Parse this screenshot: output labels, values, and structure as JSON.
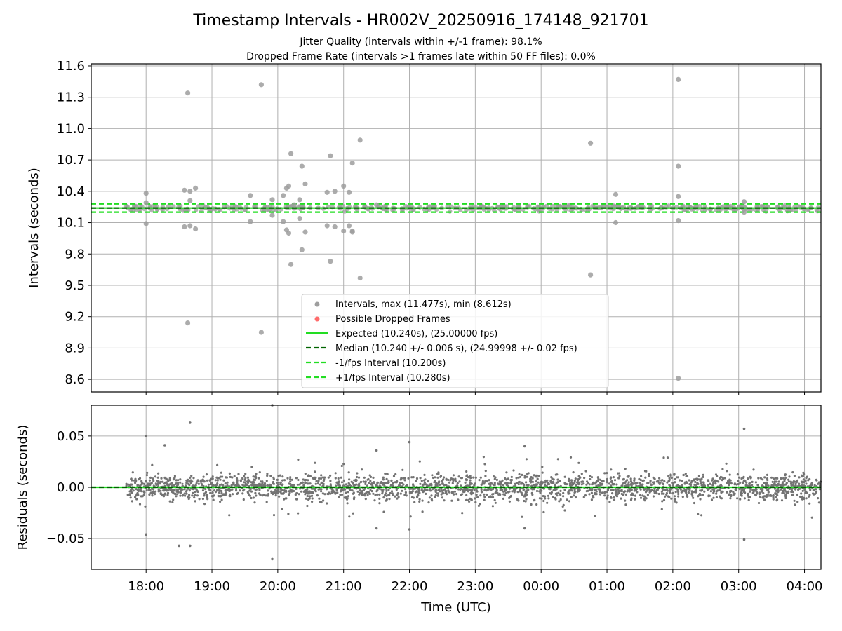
{
  "chart_data": [
    {
      "type": "scatter",
      "title": "Timestamp Intervals - HR002V_20250916_174148_921701",
      "subtitle_lines": [
        "Jitter Quality (intervals within +/-1 frame): 98.1%",
        "Dropped Frame Rate (intervals >1 frames late within 50 FF files): 0.0%"
      ],
      "ylabel": "Intervals (seconds)",
      "ylim": [
        8.48,
        11.62
      ],
      "yticks": [
        "8.6",
        "8.9",
        "9.2",
        "9.5",
        "9.8",
        "10.1",
        "10.4",
        "10.7",
        "11.0",
        "11.3",
        "11.6"
      ],
      "xlim": [
        "2025-09-16 17:10",
        "2025-09-17 04:15"
      ],
      "xticks": [
        "18:00",
        "19:00",
        "20:00",
        "21:00",
        "22:00",
        "23:00",
        "00:00",
        "01:00",
        "02:00",
        "03:00",
        "04:00"
      ],
      "grid": true,
      "legend": {
        "placement": "lower-center",
        "entries": [
          "Intervals, max (11.477s), min (8.612s)",
          "Possible Dropped Frames",
          "Expected (10.240s), (25.00000 fps)",
          "Median (10.240 +/- 0.006 s), (24.99998 +/- 0.02 fps)",
          "-1/fps Interval (10.200s)",
          "+1/fps Interval (10.280s)"
        ]
      },
      "series": [
        {
          "name": "Intervals, max (11.477s), min (8.612s)",
          "color": "#9e9e9e",
          "points": [
            [
              "2025-09-16 18:00",
              10.38
            ],
            [
              "2025-09-16 18:00",
              10.09
            ],
            [
              "2025-09-16 18:00",
              10.29
            ],
            [
              "2025-09-16 18:35",
              10.41
            ],
            [
              "2025-09-16 18:35",
              10.06
            ],
            [
              "2025-09-16 18:38",
              11.34
            ],
            [
              "2025-09-16 18:38",
              9.14
            ],
            [
              "2025-09-16 18:40",
              10.07
            ],
            [
              "2025-09-16 18:40",
              10.31
            ],
            [
              "2025-09-16 18:40",
              10.4
            ],
            [
              "2025-09-16 18:45",
              10.43
            ],
            [
              "2025-09-16 18:45",
              10.04
            ],
            [
              "2025-09-16 19:35",
              10.36
            ],
            [
              "2025-09-16 19:35",
              10.11
            ],
            [
              "2025-09-16 19:45",
              11.42
            ],
            [
              "2025-09-16 19:45",
              9.05
            ],
            [
              "2025-09-16 19:55",
              10.32
            ],
            [
              "2025-09-16 19:55",
              10.17
            ],
            [
              "2025-09-16 20:05",
              10.36
            ],
            [
              "2025-09-16 20:05",
              10.11
            ],
            [
              "2025-09-16 20:08",
              10.43
            ],
            [
              "2025-09-16 20:08",
              10.03
            ],
            [
              "2025-09-16 20:10",
              10.45
            ],
            [
              "2025-09-16 20:10",
              10.0
            ],
            [
              "2025-09-16 20:12",
              10.76
            ],
            [
              "2025-09-16 20:12",
              9.7
            ],
            [
              "2025-09-16 20:15",
              10.27
            ],
            [
              "2025-09-16 20:20",
              10.32
            ],
            [
              "2025-09-16 20:20",
              10.14
            ],
            [
              "2025-09-16 20:22",
              10.64
            ],
            [
              "2025-09-16 20:22",
              9.84
            ],
            [
              "2025-09-16 20:25",
              10.47
            ],
            [
              "2025-09-16 20:25",
              10.01
            ],
            [
              "2025-09-16 20:45",
              10.39
            ],
            [
              "2025-09-16 20:45",
              10.07
            ],
            [
              "2025-09-16 20:48",
              10.74
            ],
            [
              "2025-09-16 20:48",
              9.73
            ],
            [
              "2025-09-16 20:52",
              10.4
            ],
            [
              "2025-09-16 20:52",
              10.06
            ],
            [
              "2025-09-16 21:00",
              10.45
            ],
            [
              "2025-09-16 21:00",
              10.02
            ],
            [
              "2025-09-16 21:05",
              10.39
            ],
            [
              "2025-09-16 21:05",
              10.07
            ],
            [
              "2025-09-16 21:08",
              10.67
            ],
            [
              "2025-09-16 21:08",
              10.02
            ],
            [
              "2025-09-16 21:08",
              10.01
            ],
            [
              "2025-09-16 21:15",
              10.89
            ],
            [
              "2025-09-16 21:15",
              9.57
            ],
            [
              "2025-09-16 21:30",
              10.27
            ],
            [
              "2025-09-17 00:45",
              10.86
            ],
            [
              "2025-09-17 00:45",
              9.6
            ],
            [
              "2025-09-17 01:08",
              10.37
            ],
            [
              "2025-09-17 01:08",
              10.1
            ],
            [
              "2025-09-17 02:05",
              11.47
            ],
            [
              "2025-09-17 02:05",
              8.61
            ],
            [
              "2025-09-17 02:05",
              10.64
            ],
            [
              "2025-09-17 02:05",
              10.35
            ],
            [
              "2025-09-17 02:05",
              10.12
            ],
            [
              "2025-09-17 03:05",
              10.3
            ],
            [
              "2025-09-17 03:05",
              10.2
            ]
          ]
        },
        {
          "name": "Possible Dropped Frames",
          "color": "#ff6b6b",
          "points": []
        }
      ],
      "reference_lines": [
        {
          "name": "Expected (10.240s), (25.00000 fps)",
          "y": 10.24,
          "color": "#22dd22",
          "style": "solid"
        },
        {
          "name": "Median (10.240 +/- 0.006 s), (24.99998 +/- 0.02 fps)",
          "y": 10.24,
          "color": "#006400",
          "style": "dashed"
        },
        {
          "name": "-1/fps Interval (10.200s)",
          "y": 10.2,
          "color": "#22dd22",
          "style": "dashed"
        },
        {
          "name": "+1/fps Interval (10.280s)",
          "y": 10.28,
          "color": "#22dd22",
          "style": "dashed"
        }
      ],
      "dense_band": {
        "from": "2025-09-16 17:42",
        "to": "2025-09-17 04:15",
        "center": 10.24,
        "spread": 0.02
      }
    },
    {
      "type": "scatter",
      "ylabel": "Residuals (seconds)",
      "xlabel": "Time (UTC)",
      "ylim": [
        -0.08,
        0.08
      ],
      "yticks": [
        "−0.05",
        "0.00",
        "0.05"
      ],
      "ytick_values": [
        -0.05,
        0.0,
        0.05
      ],
      "xlim": [
        "2025-09-16 17:10",
        "2025-09-17 04:15"
      ],
      "xticks": [
        "18:00",
        "19:00",
        "20:00",
        "21:00",
        "22:00",
        "23:00",
        "00:00",
        "01:00",
        "02:00",
        "03:00",
        "04:00"
      ],
      "grid": true,
      "series": [
        {
          "name": "Residuals",
          "color": "#737373",
          "band": {
            "from": "2025-09-16 17:42",
            "to": "2025-09-17 04:15",
            "spread": 0.011
          },
          "outliers": [
            [
              "2025-09-16 18:00",
              0.05
            ],
            [
              "2025-09-16 18:00",
              -0.046
            ],
            [
              "2025-09-16 18:17",
              0.041
            ],
            [
              "2025-09-16 18:30",
              -0.057
            ],
            [
              "2025-09-16 18:40",
              0.063
            ],
            [
              "2025-09-16 18:40",
              -0.057
            ],
            [
              "2025-09-16 19:55",
              0.08
            ],
            [
              "2025-09-16 19:55",
              -0.07
            ],
            [
              "2025-09-16 21:30",
              0.036
            ],
            [
              "2025-09-16 21:30",
              -0.04
            ],
            [
              "2025-09-16 22:00",
              0.044
            ],
            [
              "2025-09-16 22:00",
              -0.041
            ],
            [
              "2025-09-16 23:45",
              0.04
            ],
            [
              "2025-09-16 23:45",
              -0.04
            ],
            [
              "2025-09-17 03:05",
              0.057
            ],
            [
              "2025-09-17 03:05",
              -0.051
            ]
          ]
        }
      ],
      "reference_lines": [
        {
          "y": 0.0,
          "color": "#22dd22",
          "style": "solid"
        },
        {
          "y": 0.0,
          "color": "#006400",
          "style": "dashed"
        }
      ]
    }
  ]
}
